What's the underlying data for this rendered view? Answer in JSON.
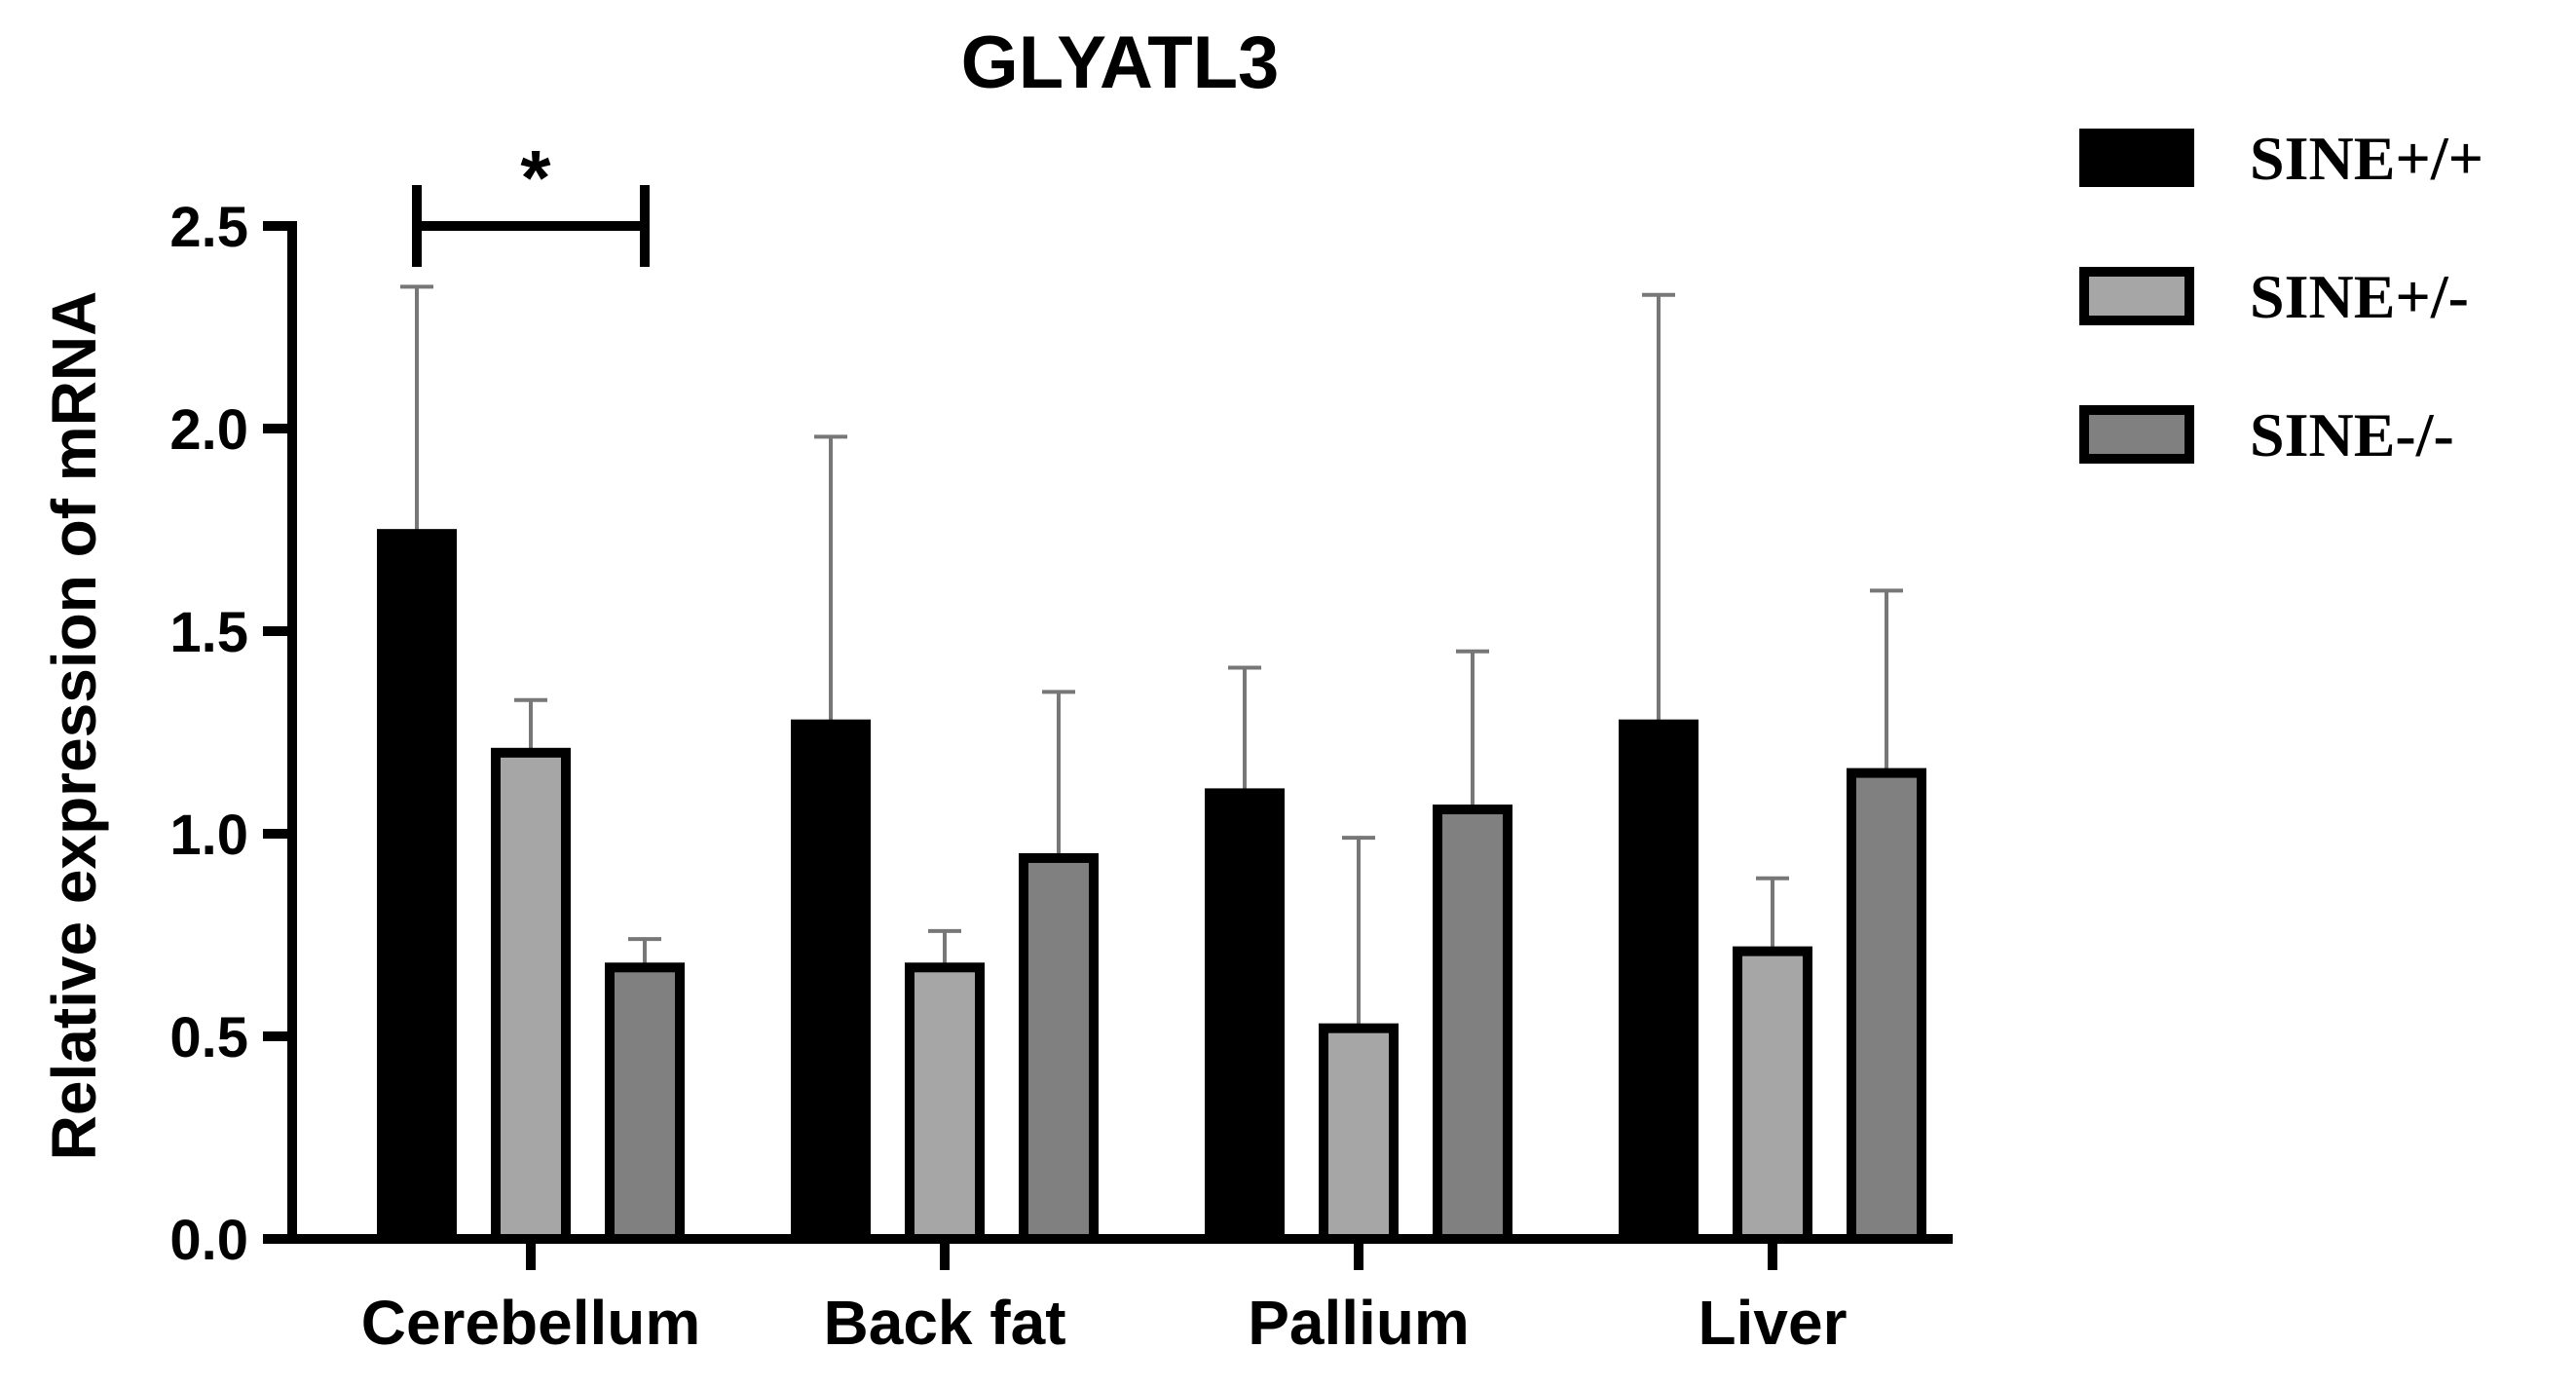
{
  "chart_data": {
    "type": "bar",
    "title": "GLYATL3",
    "xlabel": "",
    "ylabel": "Relative expression of mRNA",
    "ylim": [
      0,
      2.5
    ],
    "yticks": [
      "0.0",
      "0.5",
      "1.0",
      "1.5",
      "2.0",
      "2.5"
    ],
    "categories": [
      "Cerebellum",
      "Back fat",
      "Pallium",
      "Liver"
    ],
    "series": [
      {
        "name": "SINE+/+",
        "color": "#000000",
        "values": [
          1.74,
          1.27,
          1.1,
          1.27
        ],
        "errors": [
          0.61,
          0.71,
          0.31,
          1.06
        ]
      },
      {
        "name": "SINE+/-",
        "color": "#a6a6a6",
        "values": [
          1.2,
          0.67,
          0.52,
          0.71
        ],
        "errors": [
          0.13,
          0.09,
          0.47,
          0.18
        ]
      },
      {
        "name": "SINE-/-",
        "color": "#808080",
        "values": [
          0.67,
          0.94,
          1.06,
          1.15
        ],
        "errors": [
          0.07,
          0.41,
          0.39,
          0.45
        ]
      }
    ],
    "legend_position": "top-right",
    "significance": [
      {
        "category": "Cerebellum",
        "from_series": 0,
        "to_series": 2,
        "label": "*"
      }
    ]
  }
}
